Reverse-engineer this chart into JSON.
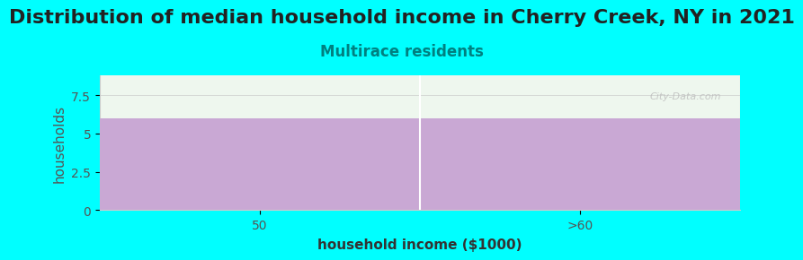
{
  "title": "Distribution of median household income in Cherry Creek, NY in 2021",
  "subtitle": "Multirace residents",
  "xlabel": "household income ($1000)",
  "ylabel": "households",
  "categories": [
    "50",
    ">60"
  ],
  "values": [
    6,
    6
  ],
  "bar_color": "#C9A8D4",
  "above_bar_color": "#EEF7EE",
  "background_color": "#00FFFF",
  "plot_bg_color": "#EEF7EE",
  "ylim": [
    0,
    8.8
  ],
  "yticks": [
    0,
    2.5,
    5,
    7.5
  ],
  "title_fontsize": 16,
  "title_color": "#222222",
  "subtitle_color": "#008080",
  "subtitle_fontsize": 12,
  "axis_label_fontsize": 11,
  "tick_fontsize": 10,
  "watermark": "City-Data.com"
}
